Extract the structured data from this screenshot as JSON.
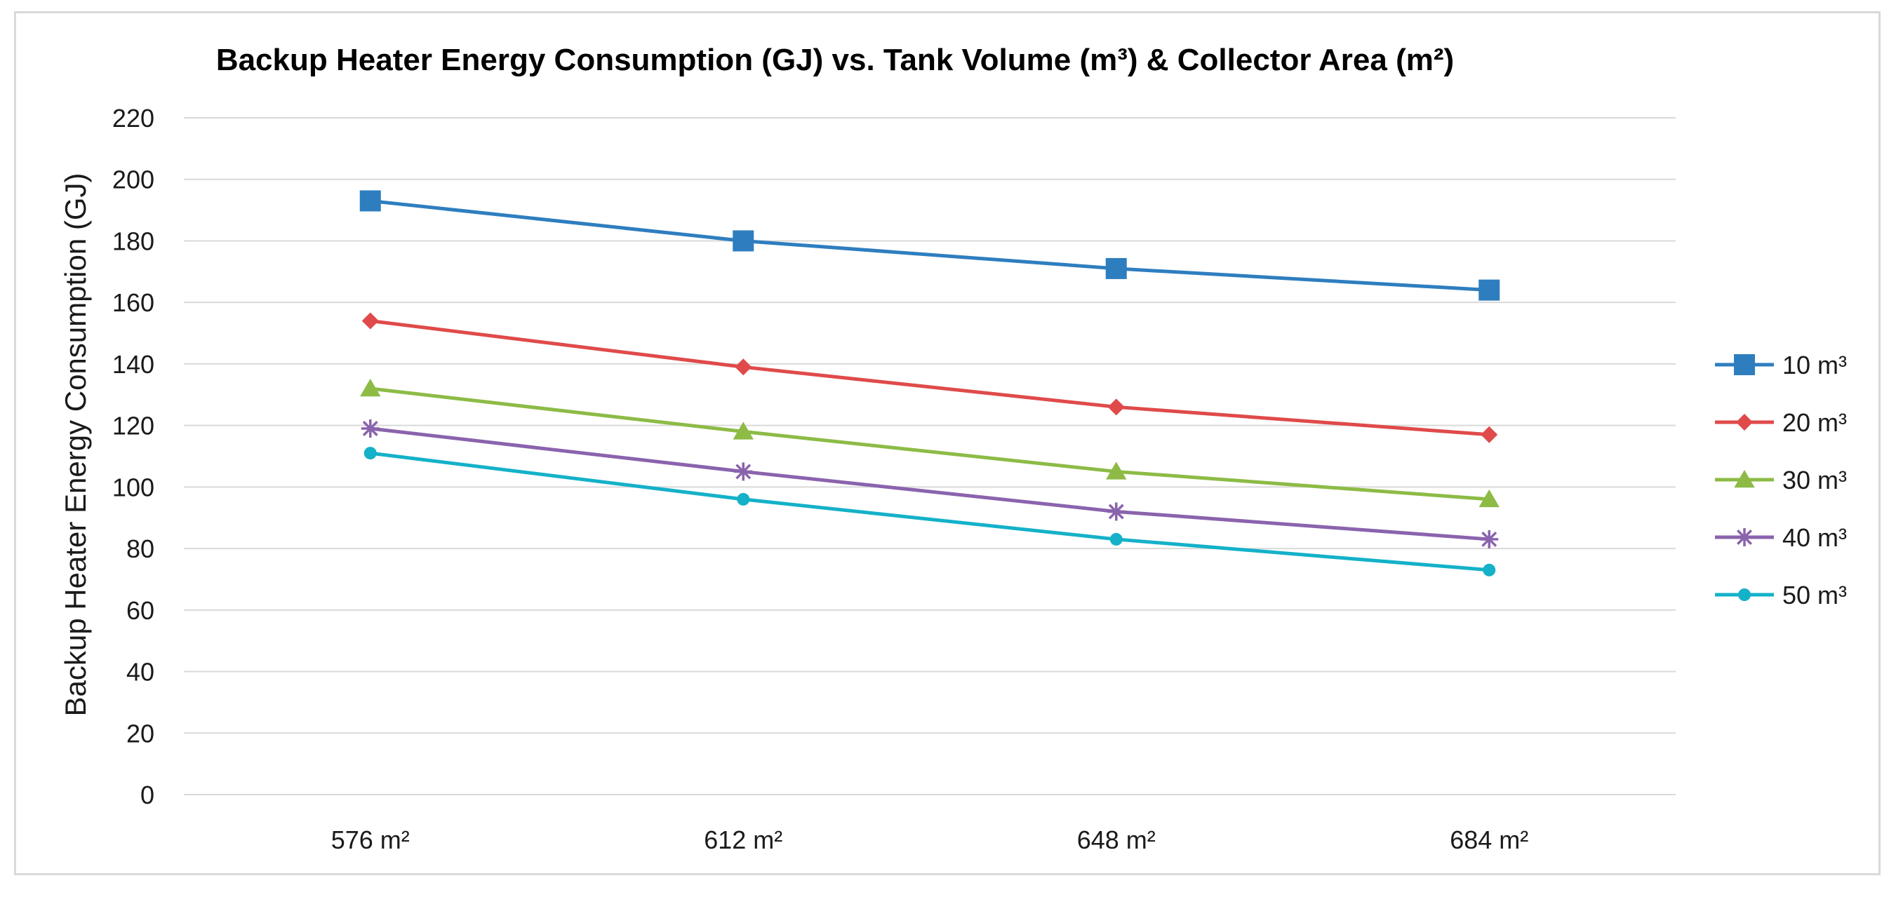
{
  "chart_data": {
    "type": "line",
    "title": "Backup Heater Energy Consumption (GJ) vs. Tank Volume (m³) & Collector Area (m²)",
    "xlabel": "",
    "ylabel": "Backup Heater Energy Consumption (GJ)",
    "categories": [
      "576 m²",
      "612 m²",
      "648 m²",
      "684 m²"
    ],
    "ylim": [
      0,
      220
    ],
    "yticks": [
      "0",
      "20",
      "40",
      "60",
      "80",
      "100",
      "120",
      "140",
      "160",
      "180",
      "200",
      "220"
    ],
    "grid": true,
    "legend_position": "right",
    "series": [
      {
        "name": "10 m³",
        "values": [
          193,
          180,
          171,
          164
        ],
        "color": "#2e7ebf",
        "marker": "square"
      },
      {
        "name": "20 m³",
        "values": [
          154,
          139,
          126,
          117
        ],
        "color": "#e04a4a",
        "marker": "diamond"
      },
      {
        "name": "30 m³",
        "values": [
          132,
          118,
          105,
          96
        ],
        "color": "#8dbb46",
        "marker": "triangle"
      },
      {
        "name": "40 m³",
        "values": [
          119,
          105,
          92,
          83
        ],
        "color": "#8a63ad",
        "marker": "asterisk"
      },
      {
        "name": "50 m³",
        "values": [
          111,
          96,
          83,
          73
        ],
        "color": "#14b1c9",
        "marker": "circle"
      }
    ]
  },
  "colors": {
    "gridline": "#d9d9d9",
    "frame": "#d9d9d9"
  }
}
